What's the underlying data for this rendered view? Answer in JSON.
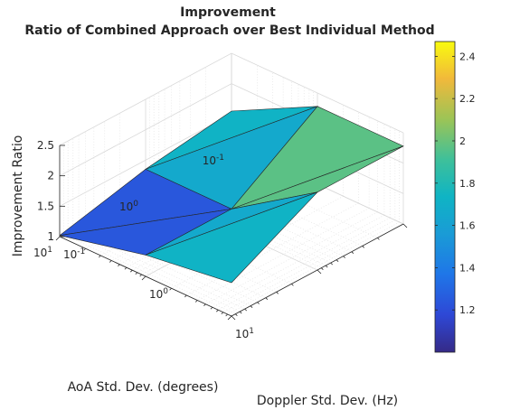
{
  "chart_data": {
    "type": "surface",
    "title": "Improvement",
    "subtitle": "Ratio of Combined Approach over Best Individual Method",
    "xlabel": "Doppler Std. Dev. (Hz)",
    "ylabel": "AoA Std. Dev. (degrees)",
    "zlabel": "Improvement Ratio",
    "x_ticks": [
      {
        "base": "10",
        "exp": "-1"
      },
      {
        "base": "10",
        "exp": "0"
      },
      {
        "base": "10",
        "exp": "1"
      }
    ],
    "y_ticks": [
      {
        "base": "10",
        "exp": "-1"
      },
      {
        "base": "10",
        "exp": "0"
      },
      {
        "base": "10",
        "exp": "1"
      }
    ],
    "z_ticks": [
      "1",
      "1.5",
      "2",
      "2.5"
    ],
    "zlim": [
      1,
      2.5
    ],
    "x_scale": "log",
    "y_scale": "log",
    "grid": true,
    "colormap": "parula",
    "colorbar": {
      "range": [
        1.0,
        2.47
      ],
      "ticks": [
        "1.2",
        "1.4",
        "1.6",
        "1.8",
        "2",
        "2.2",
        "2.4"
      ],
      "placement": "right"
    },
    "x": [
      0.1,
      1,
      10
    ],
    "y": [
      0.1,
      1,
      10
    ],
    "z": [
      [
        1.55,
        2.28,
        2.28
      ],
      [
        1.35,
        1.35,
        2.28
      ],
      [
        1.02,
        1.35,
        1.55
      ]
    ]
  }
}
